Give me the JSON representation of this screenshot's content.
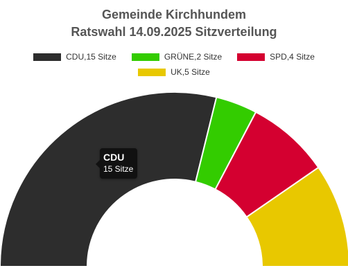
{
  "chart_data": {
    "type": "pie",
    "variant": "semi-donut",
    "title": "Gemeinde Kirchhundem",
    "subtitle": "Ratswahl 14.09.2025 Sitzverteilung",
    "unit": "Sitze",
    "legend_position": "top",
    "slices": [
      {
        "name": "CDU",
        "value": 15,
        "color": "#2d2d2d",
        "legend_label": "CDU,15 Sitze"
      },
      {
        "name": "GRÜNE",
        "value": 2,
        "color": "#33cc00",
        "legend_label": "GRÜNE,2 Sitze"
      },
      {
        "name": "SPD",
        "value": 4,
        "color": "#d40030",
        "legend_label": "SPD,4 Sitze"
      },
      {
        "name": "UK",
        "value": 5,
        "color": "#e8c800",
        "legend_label": "UK,5 Sitze"
      }
    ],
    "tooltip": {
      "name": "CDU",
      "value_label": "15 Sitze"
    }
  }
}
